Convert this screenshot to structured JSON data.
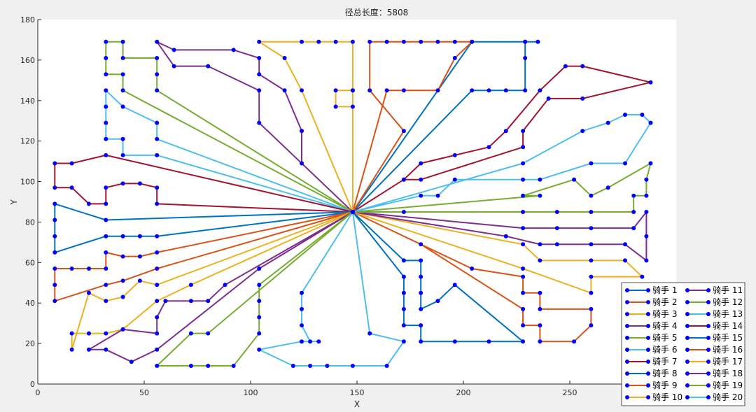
{
  "chart_data": {
    "type": "line",
    "title": "径总长度：5808",
    "xlabel": "X",
    "ylabel": "Y",
    "xlim": [
      0,
      300
    ],
    "ylim": [
      0,
      180
    ],
    "xticks": [
      0,
      50,
      100,
      150,
      200,
      250
    ],
    "yticks": [
      0,
      20,
      40,
      60,
      80,
      100,
      120,
      140,
      160,
      180
    ],
    "grid": false,
    "legend_position": "bottom-right",
    "depot": [
      148,
      85
    ],
    "series": [
      {
        "name": "骑手 1",
        "color": "#0072BD",
        "points": [
          [
            148,
            85
          ],
          [
            204,
            169
          ],
          [
            229,
            169
          ],
          [
            235,
            169
          ],
          [
            229,
            169
          ],
          [
            229,
            161
          ],
          [
            229,
            145
          ],
          [
            220,
            145
          ],
          [
            212,
            145
          ],
          [
            204,
            145
          ],
          [
            148,
            85
          ]
        ]
      },
      {
        "name": "骑手 2",
        "color": "#D95319",
        "points": [
          [
            148,
            85
          ],
          [
            172,
            125
          ],
          [
            156,
            145
          ],
          [
            156,
            169
          ],
          [
            164,
            169
          ],
          [
            172,
            169
          ],
          [
            180,
            169
          ],
          [
            188,
            169
          ],
          [
            196,
            169
          ],
          [
            204,
            169
          ],
          [
            196,
            161
          ],
          [
            188,
            145
          ],
          [
            172,
            145
          ],
          [
            164,
            145
          ],
          [
            148,
            85
          ]
        ]
      },
      {
        "name": "骑手 3",
        "color": "#EDB120",
        "points": [
          [
            148,
            85
          ],
          [
            124,
            145
          ],
          [
            116,
            161
          ],
          [
            104,
            169
          ],
          [
            124,
            169
          ],
          [
            132,
            169
          ],
          [
            140,
            169
          ],
          [
            148,
            169
          ],
          [
            148,
            145
          ],
          [
            148,
            137
          ],
          [
            140,
            137
          ],
          [
            140,
            145
          ],
          [
            148,
            145
          ],
          [
            148,
            85
          ]
        ]
      },
      {
        "name": "骑手 4",
        "color": "#7E2F8E",
        "points": [
          [
            148,
            85
          ],
          [
            124,
            109
          ],
          [
            124,
            125
          ],
          [
            116,
            145
          ],
          [
            104,
            153
          ],
          [
            104,
            161
          ],
          [
            92,
            165
          ],
          [
            64,
            165
          ],
          [
            56,
            169
          ],
          [
            64,
            157
          ],
          [
            80,
            157
          ],
          [
            104,
            145
          ],
          [
            104,
            129
          ],
          [
            148,
            85
          ]
        ]
      },
      {
        "name": "骑手 5",
        "color": "#77AC30",
        "points": [
          [
            148,
            85
          ],
          [
            56,
            145
          ],
          [
            56,
            153
          ],
          [
            56,
            161
          ],
          [
            40,
            161
          ],
          [
            40,
            169
          ],
          [
            32,
            169
          ],
          [
            32,
            161
          ],
          [
            32,
            153
          ],
          [
            40,
            153
          ],
          [
            40,
            145
          ],
          [
            148,
            85
          ]
        ]
      },
      {
        "name": "骑手 6",
        "color": "#4DBEEE",
        "points": [
          [
            148,
            85
          ],
          [
            56,
            121
          ],
          [
            56,
            129
          ],
          [
            40,
            137
          ],
          [
            32,
            145
          ],
          [
            32,
            137
          ],
          [
            32,
            129
          ],
          [
            32,
            121
          ],
          [
            40,
            121
          ],
          [
            40,
            113
          ],
          [
            56,
            113
          ],
          [
            148,
            85
          ]
        ]
      },
      {
        "name": "骑手 7",
        "color": "#A2142F",
        "points": [
          [
            148,
            85
          ],
          [
            32,
            113
          ],
          [
            16,
            109
          ],
          [
            8,
            109
          ],
          [
            8,
            97
          ],
          [
            16,
            97
          ],
          [
            24,
            89
          ],
          [
            32,
            89
          ],
          [
            32,
            97
          ],
          [
            40,
            99
          ],
          [
            48,
            99
          ],
          [
            56,
            97
          ],
          [
            56,
            89
          ],
          [
            148,
            85
          ]
        ]
      },
      {
        "name": "骑手 8",
        "color": "#0072BD",
        "points": [
          [
            148,
            85
          ],
          [
            32,
            81
          ],
          [
            8,
            89
          ],
          [
            8,
            81
          ],
          [
            8,
            73
          ],
          [
            8,
            65
          ],
          [
            32,
            73
          ],
          [
            40,
            73
          ],
          [
            48,
            73
          ],
          [
            56,
            73
          ],
          [
            148,
            85
          ]
        ]
      },
      {
        "name": "骑手 9",
        "color": "#D95319",
        "points": [
          [
            148,
            85
          ],
          [
            56,
            65
          ],
          [
            48,
            63
          ],
          [
            40,
            63
          ],
          [
            32,
            65
          ],
          [
            32,
            57
          ],
          [
            24,
            57
          ],
          [
            16,
            57
          ],
          [
            8,
            57
          ],
          [
            8,
            49
          ],
          [
            8,
            41
          ],
          [
            32,
            49
          ],
          [
            40,
            51
          ],
          [
            56,
            57
          ],
          [
            148,
            85
          ]
        ]
      },
      {
        "name": "骑手 10",
        "color": "#EDB120",
        "points": [
          [
            148,
            85
          ],
          [
            56,
            49
          ],
          [
            48,
            51
          ],
          [
            40,
            43
          ],
          [
            32,
            41
          ],
          [
            24,
            45
          ],
          [
            16,
            17
          ],
          [
            16,
            25
          ],
          [
            24,
            25
          ],
          [
            32,
            25
          ],
          [
            40,
            27
          ],
          [
            56,
            41
          ],
          [
            72,
            49
          ],
          [
            148,
            85
          ]
        ]
      },
      {
        "name": "骑手 11",
        "color": "#7E2F8E",
        "points": [
          [
            148,
            85
          ],
          [
            104,
            57
          ],
          [
            56,
            17
          ],
          [
            44,
            11
          ],
          [
            32,
            17
          ],
          [
            24,
            17
          ],
          [
            40,
            27
          ],
          [
            56,
            25
          ],
          [
            56,
            33
          ],
          [
            60,
            41
          ],
          [
            72,
            41
          ],
          [
            80,
            41
          ],
          [
            88,
            49
          ],
          [
            148,
            85
          ]
        ]
      },
      {
        "name": "骑手 12",
        "color": "#77AC30",
        "points": [
          [
            148,
            85
          ],
          [
            104,
            49
          ],
          [
            104,
            41
          ],
          [
            104,
            33
          ],
          [
            104,
            25
          ],
          [
            92,
            9
          ],
          [
            80,
            9
          ],
          [
            72,
            9
          ],
          [
            56,
            9
          ],
          [
            72,
            25
          ],
          [
            80,
            25
          ],
          [
            148,
            85
          ]
        ]
      },
      {
        "name": "骑手 13",
        "color": "#4DBEEE",
        "points": [
          [
            148,
            85
          ],
          [
            124,
            45
          ],
          [
            124,
            37
          ],
          [
            124,
            29
          ],
          [
            128,
            21
          ],
          [
            132,
            21
          ],
          [
            124,
            21
          ],
          [
            104,
            17
          ],
          [
            120,
            9
          ],
          [
            128,
            9
          ],
          [
            136,
            9
          ],
          [
            148,
            9
          ],
          [
            164,
            9
          ],
          [
            172,
            21
          ],
          [
            156,
            25
          ],
          [
            148,
            85
          ]
        ]
      },
      {
        "name": "骑手 14",
        "color": "#A2142F",
        "points": [
          [
            148,
            85
          ],
          [
            172,
            101
          ],
          [
            180,
            109
          ],
          [
            196,
            113
          ],
          [
            212,
            117
          ],
          [
            220,
            125
          ],
          [
            236,
            145
          ],
          [
            248,
            157
          ],
          [
            256,
            157
          ],
          [
            288,
            149
          ],
          [
            256,
            141
          ],
          [
            240,
            141
          ],
          [
            228,
            125
          ],
          [
            228,
            117
          ],
          [
            180,
            101
          ],
          [
            172,
            101
          ],
          [
            148,
            85
          ]
        ]
      },
      {
        "name": "骑手 15",
        "color": "#0072BD",
        "points": [
          [
            148,
            85
          ],
          [
            172,
            61
          ],
          [
            180,
            61
          ],
          [
            180,
            53
          ],
          [
            180,
            45
          ],
          [
            180,
            37
          ],
          [
            188,
            41
          ],
          [
            196,
            49
          ],
          [
            228,
            21
          ],
          [
            212,
            21
          ],
          [
            196,
            21
          ],
          [
            180,
            21
          ],
          [
            180,
            29
          ],
          [
            172,
            29
          ],
          [
            172,
            37
          ],
          [
            172,
            45
          ],
          [
            172,
            53
          ],
          [
            148,
            85
          ]
        ]
      },
      {
        "name": "骑手 16",
        "color": "#D95319",
        "points": [
          [
            148,
            85
          ],
          [
            204,
            57
          ],
          [
            228,
            53
          ],
          [
            228,
            45
          ],
          [
            236,
            45
          ],
          [
            236,
            37
          ],
          [
            260,
            37
          ],
          [
            260,
            29
          ],
          [
            252,
            21
          ],
          [
            236,
            21
          ],
          [
            236,
            29
          ],
          [
            228,
            29
          ],
          [
            228,
            37
          ],
          [
            180,
            69
          ],
          [
            148,
            85
          ]
        ]
      },
      {
        "name": "骑手 17",
        "color": "#EDB120",
        "points": [
          [
            148,
            85
          ],
          [
            228,
            69
          ],
          [
            236,
            61
          ],
          [
            260,
            61
          ],
          [
            276,
            61
          ],
          [
            284,
            53
          ],
          [
            260,
            53
          ],
          [
            260,
            45
          ],
          [
            228,
            57
          ],
          [
            148,
            85
          ]
        ]
      },
      {
        "name": "骑手 18",
        "color": "#7E2F8E",
        "points": [
          [
            148,
            85
          ],
          [
            220,
            73
          ],
          [
            236,
            69
          ],
          [
            244,
            69
          ],
          [
            260,
            69
          ],
          [
            276,
            69
          ],
          [
            286,
            61
          ],
          [
            286,
            73
          ],
          [
            286,
            85
          ],
          [
            280,
            77
          ],
          [
            260,
            77
          ],
          [
            244,
            77
          ],
          [
            228,
            77
          ],
          [
            148,
            85
          ]
        ]
      },
      {
        "name": "骑手 19",
        "color": "#77AC30",
        "points": [
          [
            148,
            85
          ],
          [
            172,
            85
          ],
          [
            228,
            85
          ],
          [
            244,
            85
          ],
          [
            260,
            85
          ],
          [
            280,
            85
          ],
          [
            280,
            93
          ],
          [
            286,
            93
          ],
          [
            286,
            101
          ],
          [
            288,
            109
          ],
          [
            268,
            97
          ],
          [
            260,
            93
          ],
          [
            252,
            101
          ],
          [
            228,
            93
          ],
          [
            236,
            93
          ],
          [
            148,
            85
          ]
        ]
      },
      {
        "name": "骑手 20",
        "color": "#4DBEEE",
        "points": [
          [
            148,
            85
          ],
          [
            180,
            93
          ],
          [
            188,
            93
          ],
          [
            196,
            101
          ],
          [
            228,
            101
          ],
          [
            236,
            101
          ],
          [
            260,
            109
          ],
          [
            276,
            109
          ],
          [
            288,
            129
          ],
          [
            284,
            133
          ],
          [
            276,
            133
          ],
          [
            268,
            129
          ],
          [
            256,
            125
          ],
          [
            228,
            109
          ],
          [
            148,
            85
          ]
        ]
      }
    ]
  }
}
